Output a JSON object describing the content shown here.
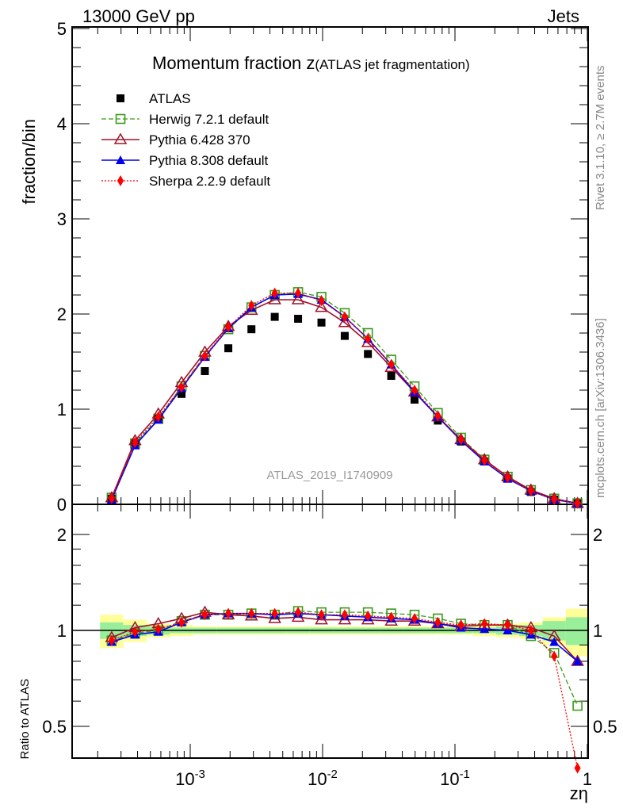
{
  "header": {
    "left": "13000 GeV pp",
    "right": "Jets"
  },
  "side_text": {
    "rivet": "Rivet 3.1.10, ≥ 2.7M events",
    "mcplots": "mcplots.cern.ch [arXiv:1306.3436]"
  },
  "colors": {
    "atlas": "#000000",
    "herwig": "#3a9a1a",
    "pythia6": "#a0102a",
    "pythia8": "#0000ee",
    "sherpa": "#ff0000",
    "band_yellow": "#ffff99",
    "band_green": "#99ee99"
  },
  "chart_data": [
    {
      "type": "line",
      "title": "Momentum fraction z",
      "title_small": "(ATLAS jet fragmentation)",
      "ylabel": "fraction/bin",
      "xlabel": "zη",
      "xscale": "log",
      "xlim": [
        0.000128,
        1
      ],
      "ylim": [
        0,
        5
      ],
      "yticks": [
        "0",
        "1",
        "2",
        "3",
        "4",
        "5"
      ],
      "watermark": "ATLAS_2019_I1740909",
      "legend_position": "top-left",
      "x": [
        0.000255,
        0.000383,
        0.000574,
        0.00086,
        0.00129,
        0.00194,
        0.0029,
        0.00435,
        0.00653,
        0.0098,
        0.0147,
        0.022,
        0.033,
        0.0495,
        0.0742,
        0.111,
        0.167,
        0.25,
        0.375,
        0.562,
        0.843
      ],
      "series": [
        {
          "name": "ATLAS",
          "key": "atlas",
          "values": [
            0.06,
            0.65,
            0.91,
            1.16,
            1.4,
            1.64,
            1.84,
            1.97,
            1.95,
            1.91,
            1.77,
            1.58,
            1.35,
            1.1,
            0.88,
            0.66,
            0.45,
            0.27,
            0.13,
            0.05,
            0.01
          ]
        },
        {
          "name": "Herwig 7.2.1 default",
          "key": "herwig",
          "values": [
            0.07,
            0.64,
            0.9,
            1.24,
            1.56,
            1.84,
            2.07,
            2.2,
            2.23,
            2.18,
            2.01,
            1.8,
            1.52,
            1.24,
            0.96,
            0.7,
            0.47,
            0.29,
            0.15,
            0.06,
            0.01
          ]
        },
        {
          "name": "Pythia 6.428 370",
          "key": "pythia6",
          "values": [
            0.07,
            0.67,
            0.95,
            1.28,
            1.6,
            1.87,
            2.04,
            2.15,
            2.15,
            2.07,
            1.91,
            1.7,
            1.44,
            1.18,
            0.92,
            0.68,
            0.47,
            0.29,
            0.15,
            0.06,
            0.01
          ]
        },
        {
          "name": "Pythia 8.308 default",
          "key": "pythia8",
          "values": [
            0.05,
            0.62,
            0.89,
            1.22,
            1.55,
            1.85,
            2.07,
            2.2,
            2.21,
            2.15,
            1.97,
            1.74,
            1.47,
            1.18,
            0.92,
            0.67,
            0.45,
            0.27,
            0.14,
            0.05,
            0.01
          ]
        },
        {
          "name": "Sherpa 2.2.9 default",
          "key": "sherpa",
          "values": [
            0.06,
            0.65,
            0.92,
            1.23,
            1.56,
            1.86,
            2.09,
            2.22,
            2.22,
            2.14,
            1.97,
            1.74,
            1.47,
            1.2,
            0.93,
            0.68,
            0.46,
            0.28,
            0.14,
            0.05,
            0.01
          ]
        }
      ]
    },
    {
      "type": "line",
      "ylabel": "Ratio to ATLAS",
      "xlabel": "zη",
      "xscale": "log",
      "yscale": "log",
      "ylim": [
        0.4,
        2.49
      ],
      "yticks": [
        "0.5",
        "1",
        "2"
      ],
      "xticks": [
        "10^-3",
        "10^-2",
        "10^-1",
        "1"
      ],
      "band_yellow_halfwidth": [
        0.12,
        0.08,
        0.05,
        0.04,
        0.03,
        0.03,
        0.03,
        0.03,
        0.03,
        0.03,
        0.03,
        0.03,
        0.03,
        0.03,
        0.03,
        0.03,
        0.04,
        0.05,
        0.06,
        0.1,
        0.17
      ],
      "band_green_halfwidth": [
        0.06,
        0.04,
        0.03,
        0.02,
        0.02,
        0.02,
        0.02,
        0.02,
        0.02,
        0.02,
        0.02,
        0.02,
        0.02,
        0.02,
        0.02,
        0.02,
        0.02,
        0.03,
        0.04,
        0.07,
        0.1
      ],
      "series": [
        {
          "name": "Herwig 7.2.1 default",
          "key": "herwig",
          "values": [
            0.93,
            0.98,
            1.0,
            1.07,
            1.12,
            1.12,
            1.13,
            1.12,
            1.15,
            1.14,
            1.14,
            1.14,
            1.13,
            1.12,
            1.09,
            1.05,
            1.04,
            1.04,
            0.96,
            0.85,
            0.58
          ]
        },
        {
          "name": "Pythia 6.428 370",
          "key": "pythia6",
          "values": [
            0.95,
            1.02,
            1.05,
            1.09,
            1.14,
            1.12,
            1.11,
            1.09,
            1.1,
            1.08,
            1.08,
            1.08,
            1.07,
            1.07,
            1.05,
            1.03,
            1.04,
            1.04,
            1.02,
            0.96,
            0.8
          ]
        },
        {
          "name": "Pythia 8.308 default",
          "key": "pythia8",
          "values": [
            0.92,
            0.97,
            0.99,
            1.06,
            1.12,
            1.13,
            1.13,
            1.12,
            1.13,
            1.12,
            1.11,
            1.1,
            1.09,
            1.08,
            1.05,
            1.02,
            1.01,
            1.0,
            0.97,
            0.92,
            0.8
          ]
        },
        {
          "name": "Sherpa 2.2.9 default",
          "key": "sherpa",
          "values": [
            0.93,
            0.99,
            1.01,
            1.06,
            1.12,
            1.13,
            1.13,
            1.13,
            1.14,
            1.12,
            1.12,
            1.11,
            1.1,
            1.09,
            1.06,
            1.04,
            1.05,
            1.04,
            1.0,
            0.83,
            0.37
          ]
        }
      ]
    }
  ]
}
